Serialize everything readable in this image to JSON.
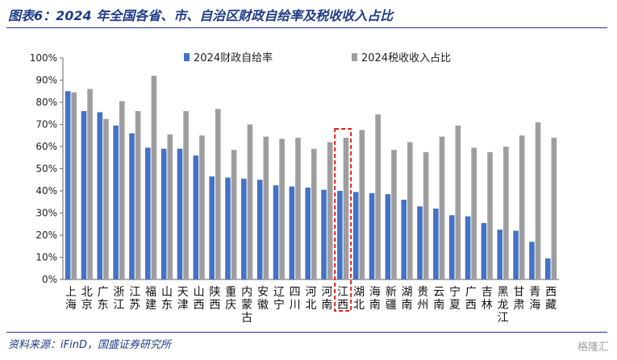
{
  "title": "图表6：2024 年全国各省、市、自治区财政自给率及税收收入占比",
  "source": "资料来源：iFinD，国盛证券研究所",
  "watermark": "格隆汇",
  "colors": {
    "series1": "#4472c4",
    "series2": "#9e9e9e",
    "highlight": "#e02020",
    "title": "#1f3c88"
  },
  "chart_data": {
    "type": "bar",
    "title": "",
    "xlabel": "",
    "ylabel": "",
    "ylim": [
      0,
      100
    ],
    "yticks": [
      "0%",
      "10%",
      "20%",
      "30%",
      "40%",
      "50%",
      "60%",
      "70%",
      "80%",
      "90%",
      "100%"
    ],
    "grid": false,
    "legend_position": "top",
    "highlight_category": "江西",
    "categories": [
      "上海",
      "北京",
      "广东",
      "浙江",
      "江苏",
      "福建",
      "山东",
      "天津",
      "山西",
      "陕西",
      "重庆",
      "内蒙古",
      "安徽",
      "辽宁",
      "四川",
      "河北",
      "河南",
      "江西",
      "湖北",
      "海南",
      "新疆",
      "湖南",
      "贵州",
      "云南",
      "宁夏",
      "广西",
      "吉林",
      "黑龙江",
      "甘肃",
      "青海",
      "西藏"
    ],
    "series": [
      {
        "name": "2024财政自给率",
        "values": [
          85,
          76,
          75.5,
          69.5,
          66,
          59.5,
          59,
          59,
          56,
          46.5,
          46,
          45.5,
          45,
          42.5,
          42,
          41.5,
          40.5,
          40,
          39.5,
          39,
          38.5,
          36,
          33,
          32,
          29,
          28.5,
          25.5,
          22.5,
          22,
          17,
          9.5
        ]
      },
      {
        "name": "2024税收收入占比",
        "values": [
          84.5,
          86,
          72.5,
          80.5,
          76,
          92,
          65.5,
          76,
          65,
          77,
          58.5,
          70,
          64.5,
          63.5,
          64,
          59,
          62,
          64,
          67.5,
          74.5,
          58.5,
          62,
          57.5,
          64.5,
          69.5,
          59.5,
          57.5,
          60,
          65,
          71,
          64
        ]
      }
    ]
  }
}
